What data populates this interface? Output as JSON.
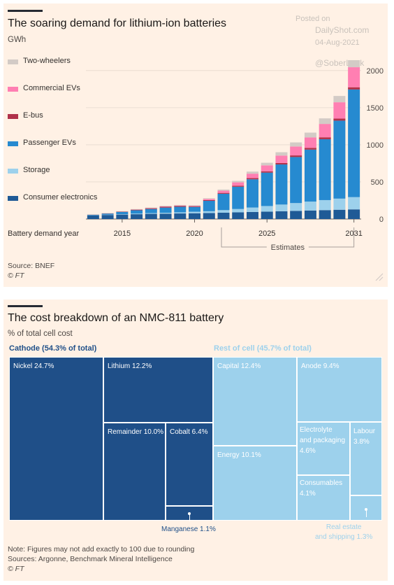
{
  "watermark": {
    "line1": "Posted on",
    "line2": "DailyShot.com",
    "line3": "04-Aug-2021",
    "handle": "@SoberLook"
  },
  "chart_data": [
    {
      "type": "bar",
      "stacked": true,
      "title": "The soaring demand for lithium-ion batteries",
      "unit_label": "GWh",
      "xlabel": "Battery demand year",
      "x_tick_labels": [
        "2015",
        "2020",
        "2025",
        "2031"
      ],
      "y_tick_labels": [
        "0",
        "500",
        "1000",
        "1500",
        "2000"
      ],
      "ylim": [
        0,
        2300
      ],
      "estimates_label": "Estimates",
      "estimates_from": "2022",
      "legend_position": "left",
      "grid": true,
      "categories": [
        "2013",
        "2014",
        "2015",
        "2016",
        "2017",
        "2018",
        "2019",
        "2020",
        "2021",
        "2022",
        "2023",
        "2024",
        "2025",
        "2026",
        "2027",
        "2028",
        "2029",
        "2030",
        "2031"
      ],
      "series": [
        {
          "name": "Consumer electronics",
          "color": "#1f5a96",
          "values": [
            50,
            55,
            60,
            65,
            70,
            72,
            75,
            78,
            80,
            85,
            90,
            95,
            100,
            105,
            110,
            115,
            120,
            125,
            130
          ]
        },
        {
          "name": "Storage",
          "color": "#9dd1ec",
          "values": [
            2,
            3,
            5,
            8,
            10,
            12,
            15,
            20,
            25,
            35,
            45,
            60,
            75,
            90,
            105,
            120,
            135,
            150,
            165
          ]
        },
        {
          "name": "Passenger EVs",
          "color": "#268ad0",
          "values": [
            5,
            15,
            30,
            45,
            55,
            70,
            75,
            65,
            140,
            220,
            300,
            380,
            450,
            540,
            620,
            700,
            820,
            1050,
            1450
          ]
        },
        {
          "name": "E-bus",
          "color": "#b0314a",
          "values": [
            2,
            3,
            5,
            8,
            10,
            12,
            12,
            10,
            10,
            12,
            14,
            16,
            18,
            20,
            22,
            24,
            26,
            28,
            30
          ]
        },
        {
          "name": "Commercial EVs",
          "color": "#ff7fb2",
          "values": [
            0,
            0,
            0,
            2,
            3,
            4,
            5,
            5,
            15,
            30,
            45,
            60,
            80,
            100,
            120,
            140,
            180,
            220,
            270
          ]
        },
        {
          "name": "Two-wheelers",
          "color": "#d3cbc6",
          "values": [
            5,
            5,
            6,
            6,
            7,
            8,
            8,
            8,
            10,
            15,
            20,
            28,
            35,
            45,
            55,
            65,
            75,
            85,
            95
          ]
        }
      ]
    },
    {
      "type": "treemap",
      "title": "The cost breakdown of an NMC-811 battery",
      "unit_label": "% of total cell cost",
      "groups": [
        {
          "name": "Cathode (54.3% of total)",
          "value": 54.3,
          "color": "#1f4f88",
          "header_color": "#1f4f88",
          "items": [
            {
              "label": "Nickel 24.7%",
              "value": 24.7
            },
            {
              "label": "Lithium 12.2%",
              "value": 12.2
            },
            {
              "label": "Remainder 10.0%",
              "value": 10.0
            },
            {
              "label": "Cobalt 6.4%",
              "value": 6.4
            },
            {
              "label": "Manganese 1.1%",
              "value": 1.1
            }
          ]
        },
        {
          "name": "Rest of cell (45.7% of total)",
          "value": 45.7,
          "color": "#9dd1ec",
          "header_color": "#9dd1ec",
          "items": [
            {
              "label": "Capital 12.4%",
              "value": 12.4
            },
            {
              "label": "Energy 10.1%",
              "value": 10.1
            },
            {
              "label": "Anode 9.4%",
              "value": 9.4
            },
            {
              "label": "Electrolyte\nand packaging\n4.6%",
              "value": 4.6
            },
            {
              "label": "Labour\n3.8%",
              "value": 3.8
            },
            {
              "label": "Consumables\n4.1%",
              "value": 4.1
            },
            {
              "label": "Real estate\nand shipping 1.3%",
              "value": 1.3
            }
          ]
        }
      ]
    }
  ],
  "chart1_footer": {
    "source": "Source: BNEF",
    "credit": "© FT"
  },
  "chart2_footer": {
    "note": "Note: Figures may not add exactly to 100 due to rounding",
    "sources": "Sources: Argonne, Benchmark Mineral Intelligence",
    "credit": "© FT"
  }
}
